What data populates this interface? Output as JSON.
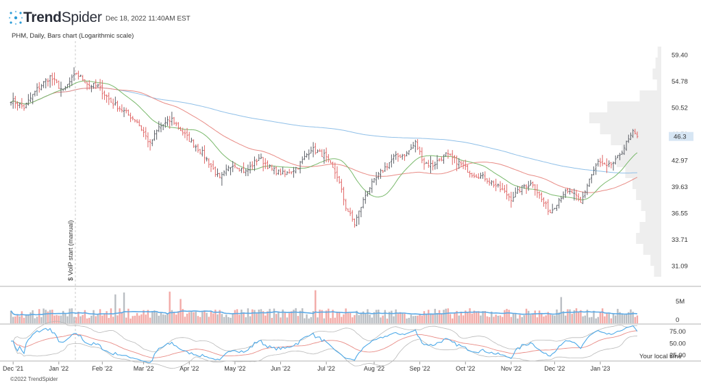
{
  "header": {
    "brand_bold": "Trend",
    "brand_light": "Spider",
    "datetime": "Dec 18, 2022 11:40AM EST",
    "subtitle": "PHM, Daily, Bars chart (Logarithmic scale)",
    "footer": "©2022 TrendSpider"
  },
  "chart_data": {
    "type": "bar",
    "symbol": "PHM",
    "scale": "log",
    "price_axis_ticks": [
      "59.40",
      "54.78",
      "50.52",
      "46.59",
      "42.97",
      "39.63",
      "36.55",
      "33.71",
      "31.09"
    ],
    "last_price": "46.3",
    "volume_axis_ticks": [
      "5M",
      "0"
    ],
    "rsi_axis_ticks": [
      "75.00",
      "50.00",
      "25.00"
    ],
    "time_axis_labels": [
      "Dec '21",
      "Jan '22",
      "Feb '22",
      "Mar '22",
      "Apr '22",
      "May '22",
      "Jun '22",
      "Jul '22",
      "Aug '22",
      "Sep '22",
      "Oct '22",
      "Nov '22",
      "Dec '22",
      "Jan '23"
    ],
    "annotation": "$ VolP start (manual)",
    "local_time_note": "Your local time",
    "anchors": [
      {
        "d": 0,
        "c": 51.8
      },
      {
        "d": 6,
        "c": 50.6
      },
      {
        "d": 12,
        "c": 53.5
      },
      {
        "d": 18,
        "c": 55.6
      },
      {
        "d": 24,
        "c": 53.2
      },
      {
        "d": 30,
        "c": 56.2
      },
      {
        "d": 36,
        "c": 54.2
      },
      {
        "d": 40,
        "c": 54.0
      },
      {
        "d": 46,
        "c": 51.5
      },
      {
        "d": 52,
        "c": 50.0
      },
      {
        "d": 58,
        "c": 48.5
      },
      {
        "d": 64,
        "c": 45.2
      },
      {
        "d": 68,
        "c": 47.6
      },
      {
        "d": 74,
        "c": 48.8
      },
      {
        "d": 80,
        "c": 46.5
      },
      {
        "d": 88,
        "c": 44.0
      },
      {
        "d": 96,
        "c": 40.6
      },
      {
        "d": 102,
        "c": 42.6
      },
      {
        "d": 108,
        "c": 41.5
      },
      {
        "d": 114,
        "c": 43.4
      },
      {
        "d": 120,
        "c": 41.8
      },
      {
        "d": 126,
        "c": 41.2
      },
      {
        "d": 132,
        "c": 42.2
      },
      {
        "d": 138,
        "c": 44.6
      },
      {
        "d": 144,
        "c": 43.7
      },
      {
        "d": 150,
        "c": 41.0
      },
      {
        "d": 154,
        "c": 37.3
      },
      {
        "d": 158,
        "c": 35.4
      },
      {
        "d": 164,
        "c": 39.3
      },
      {
        "d": 170,
        "c": 41.4
      },
      {
        "d": 176,
        "c": 43.4
      },
      {
        "d": 182,
        "c": 43.9
      },
      {
        "d": 186,
        "c": 45.4
      },
      {
        "d": 190,
        "c": 42.7
      },
      {
        "d": 194,
        "c": 42.4
      },
      {
        "d": 200,
        "c": 43.8
      },
      {
        "d": 206,
        "c": 42.7
      },
      {
        "d": 212,
        "c": 41.3
      },
      {
        "d": 218,
        "c": 40.8
      },
      {
        "d": 222,
        "c": 40.0
      },
      {
        "d": 226,
        "c": 39.2
      },
      {
        "d": 230,
        "c": 38.3
      },
      {
        "d": 236,
        "c": 39.8
      },
      {
        "d": 240,
        "c": 40.1
      },
      {
        "d": 244,
        "c": 38.1
      },
      {
        "d": 248,
        "c": 36.7
      },
      {
        "d": 254,
        "c": 38.9
      },
      {
        "d": 258,
        "c": 39.0
      },
      {
        "d": 262,
        "c": 37.7
      },
      {
        "d": 266,
        "c": 40.6
      },
      {
        "d": 270,
        "c": 42.8
      },
      {
        "d": 274,
        "c": 42.1
      },
      {
        "d": 278,
        "c": 42.9
      },
      {
        "d": 282,
        "c": 44.8
      },
      {
        "d": 286,
        "c": 46.8
      },
      {
        "d": 288,
        "c": 46.3
      }
    ],
    "volume_profile": [
      0.05,
      0.08,
      0.12,
      0.06,
      0.3,
      0.75,
      1.0,
      0.85,
      0.7,
      0.55,
      0.62,
      0.5,
      0.4,
      0.35,
      0.28,
      0.22,
      0.3,
      0.35,
      0.25,
      0.15,
      0.1
    ],
    "colors": {
      "up": "#5b5f66",
      "down": "#e06565",
      "ma_fast": "#78b86a",
      "ma_mid": "#e88a84",
      "ma_slow": "#8ebfe8",
      "vol_up": "#b9bdc2",
      "vol_down": "#f2a9a6",
      "vol_ma": "#5aa9e6",
      "rsi": "#4aa8e8",
      "rsi_ma": "#e88a84",
      "rsi_band": "#b8b8b8",
      "price_label_bg": "#d7e6f4",
      "volume_profile": "#eeeeee"
    }
  }
}
